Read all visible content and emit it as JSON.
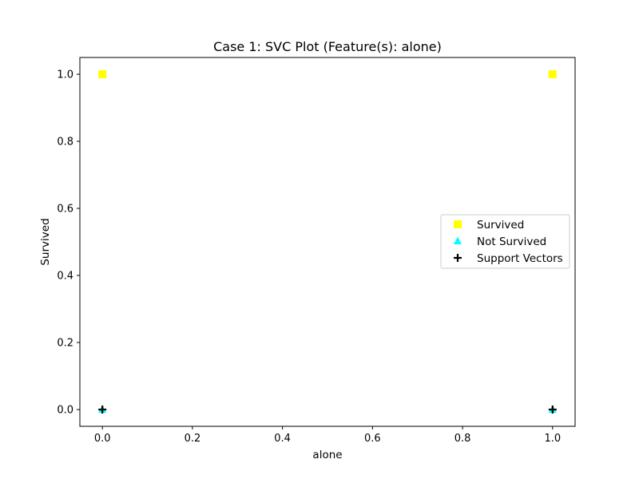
{
  "chart_data": {
    "type": "scatter",
    "title": "Case 1: SVC Plot (Feature(s): alone)",
    "xlabel": "alone",
    "ylabel": "Survived",
    "xlim": [
      -0.05,
      1.05
    ],
    "ylim": [
      -0.05,
      1.05
    ],
    "xticks": [
      "0.0",
      "0.2",
      "0.4",
      "0.6",
      "0.8",
      "1.0"
    ],
    "yticks": [
      "0.0",
      "0.2",
      "0.4",
      "0.6",
      "0.8",
      "1.0"
    ],
    "grid": false,
    "legend_position": "center-right",
    "series": [
      {
        "name": "Survived",
        "marker": "square",
        "color": "#ffff00",
        "points": [
          [
            0,
            1
          ],
          [
            1,
            1
          ]
        ]
      },
      {
        "name": "Not Survived",
        "marker": "triangle",
        "color": "#00ffff",
        "points": [
          [
            0,
            0
          ],
          [
            1,
            0
          ]
        ]
      },
      {
        "name": "Support Vectors",
        "marker": "plus",
        "color": "#000000",
        "points": [
          [
            0,
            0
          ],
          [
            1,
            0
          ]
        ]
      }
    ]
  }
}
